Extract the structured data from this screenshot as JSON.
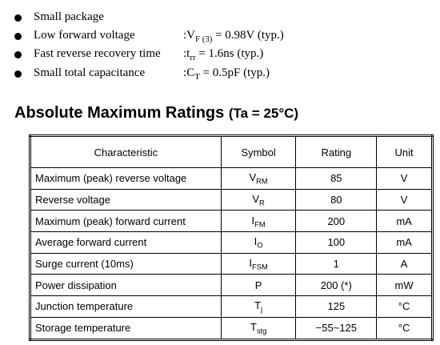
{
  "features": [
    {
      "label": "Small package"
    },
    {
      "label": "Low forward voltage",
      "value": {
        "prefix": ":",
        "main": "V",
        "sub": "F (3)",
        "rest": " = 0.98V (typ.)"
      }
    },
    {
      "label": "Fast reverse recovery time",
      "value": {
        "prefix": ":",
        "main": "t",
        "sub": "rr",
        "rest": " = 1.6ns (typ.)"
      }
    },
    {
      "label": "Small total capacitance",
      "value": {
        "prefix": ":",
        "main": "C",
        "sub": "T",
        "rest": " = 0.5pF (typ.)"
      }
    }
  ],
  "section": {
    "title": "Absolute Maximum Ratings",
    "condition": "(Ta = 25°C)"
  },
  "table": {
    "header": [
      "Characteristic",
      "Symbol",
      "Rating",
      "Unit"
    ],
    "rows": [
      {
        "characteristic": "Maximum (peak) reverse voltage",
        "symbol": {
          "main": "V",
          "sub": "RM"
        },
        "rating": "85",
        "unit": "V"
      },
      {
        "characteristic": "Reverse voltage",
        "symbol": {
          "main": "V",
          "sub": "R"
        },
        "rating": "80",
        "unit": "V"
      },
      {
        "characteristic": "Maximum (peak) forward current",
        "symbol": {
          "main": "I",
          "sub": "FM"
        },
        "rating": "200",
        "unit": "mA"
      },
      {
        "characteristic": "Average forward current",
        "symbol": {
          "main": "I",
          "sub": "O"
        },
        "rating": "100",
        "unit": "mA"
      },
      {
        "characteristic": "Surge current (10ms)",
        "symbol": {
          "main": "I",
          "sub": "FSM"
        },
        "rating": "1",
        "unit": "A"
      },
      {
        "characteristic": "Power dissipation",
        "symbol": {
          "main": "P"
        },
        "rating": "200 (*)",
        "unit": "mW"
      },
      {
        "characteristic": "Junction temperature",
        "symbol": {
          "main": "T",
          "sub": "j"
        },
        "rating": "125",
        "unit": "°C"
      },
      {
        "characteristic": "Storage temperature",
        "symbol": {
          "main": "T",
          "sub": "stg"
        },
        "rating": "−55~125",
        "unit": "°C"
      }
    ]
  }
}
